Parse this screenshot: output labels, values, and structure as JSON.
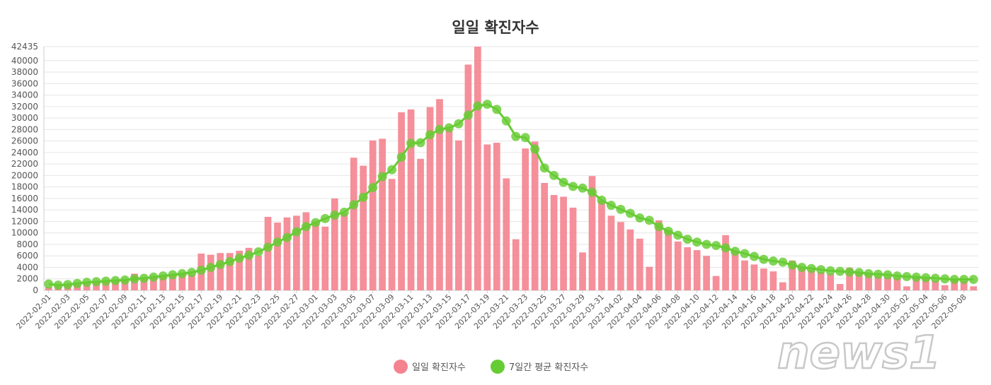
{
  "chart_data": {
    "type": "bar",
    "title": "일일 확진자수",
    "xlabel": "",
    "ylabel": "",
    "ylim": [
      0,
      42435
    ],
    "y_ticks": [
      0,
      2000,
      4000,
      6000,
      8000,
      10000,
      12000,
      14000,
      16000,
      18000,
      20000,
      22000,
      24000,
      26000,
      28000,
      30000,
      32000,
      34000,
      36000,
      38000,
      40000,
      42435
    ],
    "grid": true,
    "legend_position": "bottom",
    "x_tick_labels": [
      "2022-02-01",
      "2022-02-03",
      "2022-02-05",
      "2022-02-07",
      "2022-02-09",
      "2022-02-11",
      "2022-02-13",
      "2022-02-15",
      "2022-02-17",
      "2022-02-19",
      "2022-02-21",
      "2022-02-23",
      "2022-02-25",
      "2022-02-27",
      "2022-03-01",
      "2022-03-03",
      "2022-03-05",
      "2022-03-07",
      "2022-03-09",
      "2022-03-11",
      "2022-03-13",
      "2022-03-15",
      "2022-03-17",
      "2022-03-19",
      "2022-03-21",
      "2022-03-23",
      "2022-03-25",
      "2022-03-27",
      "2022-03-29",
      "2022-03-31",
      "2022-04-02",
      "2022-04-04",
      "2022-04-06",
      "2022-04-08",
      "2022-04-10",
      "2022-04-12",
      "2022-04-14",
      "2022-04-16",
      "2022-04-18",
      "2022-04-20",
      "2022-04-22",
      "2022-04-24",
      "2022-04-26",
      "2022-04-28",
      "2022-04-30",
      "2022-05-02",
      "2022-05-04",
      "2022-05-06",
      "2022-05-08"
    ],
    "series": [
      {
        "name": "일일 확진자수",
        "type": "bar",
        "color": "#f4838f",
        "values": [
          600,
          700,
          900,
          1000,
          1300,
          1400,
          1600,
          1700,
          2000,
          2900,
          2300,
          2500,
          2700,
          2800,
          3000,
          2800,
          6400,
          6200,
          6500,
          6500,
          6900,
          7400,
          6000,
          12800,
          11800,
          12700,
          13000,
          13600,
          12000,
          11100,
          16000,
          13400,
          23100,
          21700,
          26100,
          26400,
          19400,
          31000,
          31500,
          22900,
          31900,
          33300,
          28100,
          26100,
          39300,
          42435,
          25400,
          25700,
          19500,
          8900,
          24700,
          25900,
          18700,
          16600,
          16300,
          14400,
          6600,
          19900,
          15600,
          13000,
          11900,
          10600,
          9000,
          4100,
          12200,
          10500,
          8500,
          7500,
          7000,
          6000,
          2500,
          9600,
          6700,
          5200,
          4500,
          3800,
          3300,
          1400,
          5200,
          4000,
          3500,
          3200,
          2900,
          1100,
          3900,
          3100,
          3000,
          2500,
          2400,
          2200,
          700,
          2200,
          2000,
          1700,
          900,
          1800,
          1600,
          700
        ]
      },
      {
        "name": "7일간 평균 확진자수",
        "type": "line",
        "color": "#66cc33",
        "values": [
          1100,
          900,
          1000,
          1200,
          1400,
          1500,
          1600,
          1700,
          1800,
          2000,
          2100,
          2300,
          2500,
          2700,
          2900,
          3100,
          3500,
          4000,
          4500,
          5000,
          5600,
          6100,
          6700,
          7500,
          8400,
          9200,
          10200,
          11100,
          11800,
          12500,
          13100,
          13600,
          14900,
          16200,
          17900,
          19800,
          21000,
          23200,
          25600,
          25700,
          27100,
          28000,
          28300,
          29000,
          30500,
          32100,
          32400,
          31500,
          29500,
          26800,
          26600,
          24600,
          21300,
          20000,
          18800,
          18100,
          17800,
          17100,
          15700,
          14800,
          14100,
          13400,
          12600,
          12200,
          11100,
          10300,
          9600,
          8900,
          8400,
          8000,
          7800,
          7400,
          6800,
          6400,
          5900,
          5400,
          5100,
          4900,
          4400,
          4000,
          3800,
          3600,
          3400,
          3300,
          3200,
          3100,
          2900,
          2800,
          2700,
          2500,
          2400,
          2300,
          2200,
          2100,
          2000,
          1900,
          1900,
          1900
        ]
      }
    ]
  },
  "watermark_text": "news1"
}
